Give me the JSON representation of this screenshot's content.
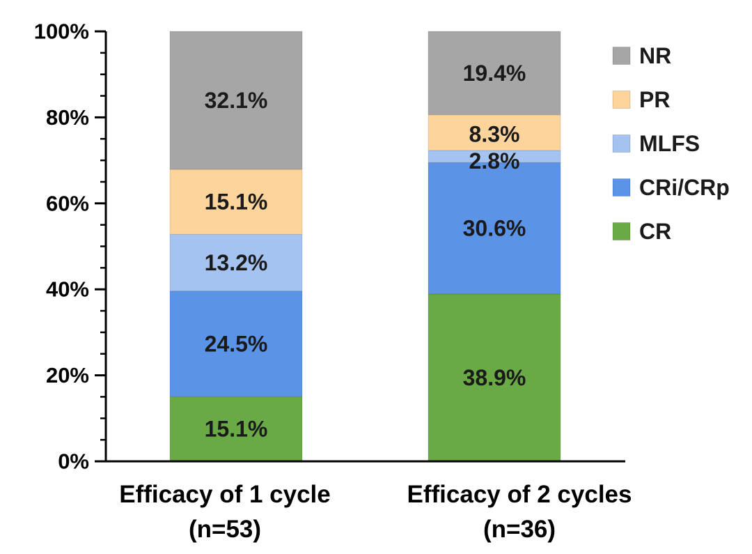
{
  "chart_data": {
    "type": "bar",
    "stacked": true,
    "categories": [
      "Efficacy of 1 cycle",
      "Efficacy of 2 cycles"
    ],
    "category_sublabels": [
      "(n=53)",
      "(n=36)"
    ],
    "series": [
      {
        "name": "CR",
        "color": "#6aaa46",
        "values": [
          15.1,
          38.9
        ],
        "labels": [
          "15.1%",
          "38.9%"
        ]
      },
      {
        "name": "CRi/CRp",
        "color": "#5b93e6",
        "values": [
          24.5,
          30.6
        ],
        "labels": [
          "24.5%",
          "30.6%"
        ]
      },
      {
        "name": "MLFS",
        "color": "#a5c3f0",
        "values": [
          13.2,
          2.8
        ],
        "labels": [
          "13.2%",
          "2.8%"
        ]
      },
      {
        "name": "PR",
        "color": "#fdd49c",
        "values": [
          15.1,
          8.3
        ],
        "labels": [
          "15.1%",
          "8.3%"
        ]
      },
      {
        "name": "NR",
        "color": "#a6a6a6",
        "values": [
          32.1,
          19.4
        ],
        "labels": [
          "32.1%",
          "19.4%"
        ]
      }
    ],
    "legend_order": [
      "NR",
      "PR",
      "MLFS",
      "CRi/CRp",
      "CR"
    ],
    "yticks": [
      "0%",
      "20%",
      "40%",
      "60%",
      "80%",
      "100%"
    ],
    "ylim": [
      0,
      100
    ],
    "legend_position": "top-right",
    "title": "",
    "xlabel": "",
    "ylabel": ""
  }
}
